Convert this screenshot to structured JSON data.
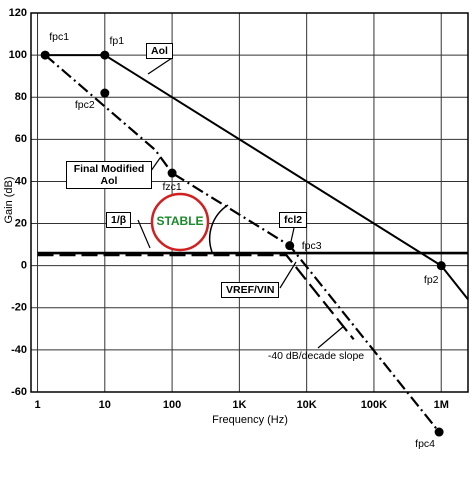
{
  "chart_data": {
    "type": "line",
    "xlabel": "Frequency (Hz)",
    "ylabel": "Gain (dB)",
    "xscale": "log",
    "xlim": [
      0.8,
      2500000
    ],
    "ylim": [
      -60,
      120
    ],
    "xticks": [
      1,
      10,
      100,
      {
        "value": 1000,
        "label": "1K"
      },
      {
        "value": 10000,
        "label": "10K"
      },
      {
        "value": 100000,
        "label": "100K"
      },
      {
        "value": 1000000,
        "label": "1M"
      }
    ],
    "yticks": [
      -60,
      -40,
      -20,
      0,
      20,
      40,
      60,
      80,
      100,
      120
    ],
    "grid": true,
    "series": [
      {
        "name": "Aol",
        "color": "#000000",
        "style": "solid",
        "x": [
          1.3,
          10,
          1000000,
          2500000
        ],
        "values": [
          100,
          100,
          0,
          -16
        ]
      },
      {
        "name": "Final Modified Aol",
        "color": "#000000",
        "style": "dashdot",
        "x": [
          1.3,
          56,
          100,
          5600,
          930000
        ],
        "values": [
          100,
          55,
          44,
          9.5,
          -79
        ]
      },
      {
        "name": "1/β",
        "color": "#000000",
        "style": "solid",
        "x": [
          1,
          2500000
        ],
        "values": [
          6,
          6
        ]
      },
      {
        "name": "VREF/VIN",
        "color": "#000000",
        "style": "dashed",
        "x": [
          1,
          5000,
          50000
        ],
        "values": [
          5,
          5,
          -35
        ]
      }
    ],
    "points": [
      {
        "label": "fpc1",
        "x": 1.3,
        "y": 100
      },
      {
        "label": "fp1",
        "x": 10,
        "y": 100
      },
      {
        "label": "fpc2",
        "x": 10,
        "y": 82
      },
      {
        "label": "fzc1",
        "x": 100,
        "y": 44
      },
      {
        "label": "fpc3",
        "x": 5600,
        "y": 9.5
      },
      {
        "label": "fp2",
        "x": 1000000,
        "y": 0
      },
      {
        "label": "fpc4",
        "x": 930000,
        "y": -79
      }
    ],
    "annotations": [
      "STABLE",
      "fcl2",
      "-40 dB/decade slope"
    ]
  }
}
